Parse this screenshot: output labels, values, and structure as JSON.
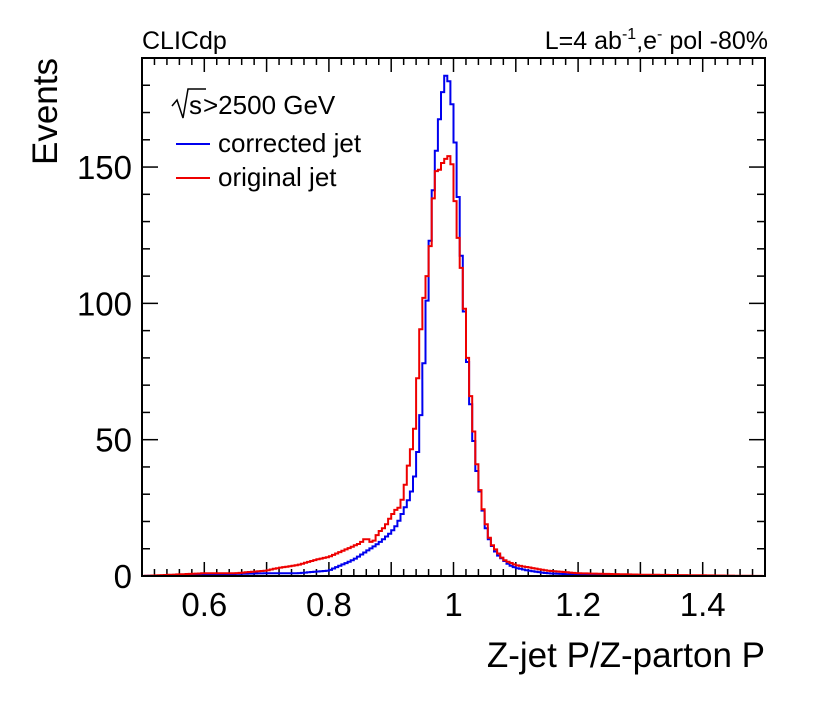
{
  "header": {
    "left": "CLICdp",
    "right_prefix": "L=4 ab",
    "right_sup1": "-1",
    "right_mid": ",e",
    "right_sup2": "-",
    "right_suffix": " pol -80%"
  },
  "chart_data": {
    "type": "histogram",
    "title": "",
    "xlabel": "Z-jet P/Z-parton P",
    "ylabel": "Events",
    "xlim": [
      0.5,
      1.5
    ],
    "ylim": [
      0,
      190
    ],
    "xticks": [
      0.6,
      0.8,
      1.0,
      1.2,
      1.4
    ],
    "xtick_labels": [
      "0.6",
      "0.8",
      "1",
      "1.2",
      "1.4"
    ],
    "yticks": [
      0,
      50,
      100,
      150
    ],
    "ytick_labels": [
      "0",
      "50",
      "100",
      "150"
    ],
    "legend_position": "top-left",
    "legend_header": ">2500 GeV",
    "legend_header_sqrt": "√s",
    "colors": {
      "corrected": "#0000ee",
      "original": "#ee0000"
    },
    "bin_width": 0.005,
    "series": [
      {
        "name": "corrected jet",
        "key": "corrected",
        "x": [
          0.5,
          0.7,
          0.75,
          0.8,
          0.82,
          0.84,
          0.86,
          0.88,
          0.9,
          0.91,
          0.92,
          0.93,
          0.935,
          0.94,
          0.945,
          0.95,
          0.955,
          0.96,
          0.965,
          0.97,
          0.975,
          0.98,
          0.985,
          0.99,
          0.995,
          1.0,
          1.005,
          1.01,
          1.015,
          1.02,
          1.025,
          1.03,
          1.035,
          1.04,
          1.045,
          1.05,
          1.055,
          1.06,
          1.065,
          1.07,
          1.08,
          1.09,
          1.1,
          1.12,
          1.15,
          1.2,
          1.3,
          1.5
        ],
        "values": [
          0,
          1,
          1,
          2,
          4,
          6,
          9,
          12,
          16,
          19,
          24,
          29,
          33,
          40,
          51,
          67,
          89,
          113,
          133,
          150,
          162,
          173,
          182,
          185,
          178,
          168,
          150,
          128,
          107,
          87,
          70,
          56,
          43,
          34,
          28,
          20,
          15,
          12,
          10,
          8,
          6,
          4,
          3,
          2,
          1,
          0.5,
          0,
          0
        ]
      },
      {
        "name": "original jet",
        "key": "original",
        "x": [
          0.5,
          0.6,
          0.65,
          0.7,
          0.72,
          0.75,
          0.78,
          0.8,
          0.82,
          0.84,
          0.85,
          0.86,
          0.87,
          0.88,
          0.89,
          0.9,
          0.91,
          0.915,
          0.92,
          0.925,
          0.93,
          0.935,
          0.94,
          0.945,
          0.95,
          0.955,
          0.96,
          0.965,
          0.97,
          0.975,
          0.98,
          0.985,
          0.99,
          0.995,
          1.0,
          1.005,
          1.01,
          1.015,
          1.02,
          1.025,
          1.03,
          1.035,
          1.04,
          1.045,
          1.05,
          1.055,
          1.06,
          1.07,
          1.08,
          1.1,
          1.15,
          1.2,
          1.3,
          1.5
        ],
        "values": [
          0,
          1,
          1,
          2,
          3,
          4,
          6,
          7,
          9,
          11,
          12,
          14,
          12,
          16,
          18,
          22,
          25,
          25,
          31,
          36,
          45,
          48,
          60,
          85,
          96,
          108,
          112,
          130,
          147,
          150,
          148,
          155,
          151,
          157,
          145,
          130,
          118,
          108,
          88,
          72,
          60,
          46,
          36,
          27,
          22,
          16,
          12,
          9,
          6,
          4,
          2,
          1,
          0.5,
          0
        ]
      }
    ]
  }
}
